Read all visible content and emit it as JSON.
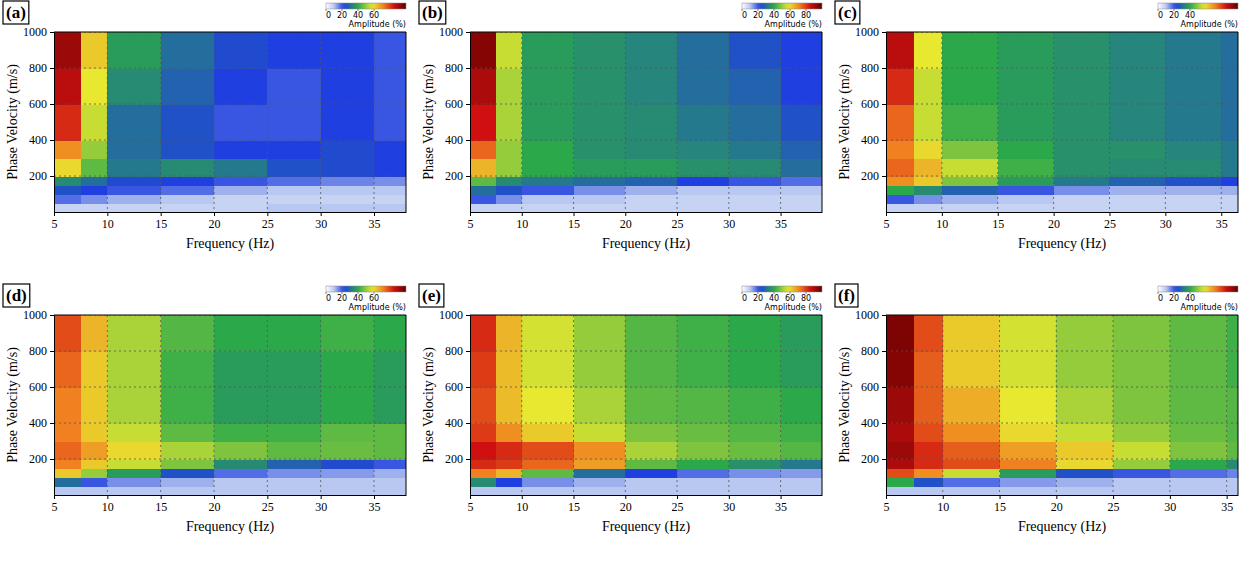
{
  "chart_data": [
    {
      "type": "heatmap",
      "panel_label": "(a)",
      "x_label": "Frequency (Hz)",
      "y_label": "Phase Velocity (m/s)",
      "xlim": [
        5,
        38
      ],
      "ylim": [
        0,
        1000
      ],
      "xticks": [
        5,
        10,
        15,
        20,
        25,
        30,
        35
      ],
      "yticks": [
        200,
        400,
        600,
        800,
        1000
      ],
      "grid": true,
      "x_edges": [
        5,
        7.5,
        10,
        15,
        20,
        25,
        30,
        35,
        40
      ],
      "y_edges": [
        0,
        50,
        100,
        150,
        200,
        300,
        400,
        600,
        800,
        1000
      ],
      "cells": [
        [
          8,
          8,
          8,
          8,
          8,
          10,
          10,
          10
        ],
        [
          18,
          15,
          12,
          10,
          8,
          8,
          8,
          8
        ],
        [
          25,
          22,
          20,
          18,
          12,
          10,
          10,
          10
        ],
        [
          35,
          30,
          24,
          22,
          20,
          18,
          16,
          15
        ],
        [
          60,
          45,
          32,
          35,
          32,
          25,
          24,
          22
        ],
        [
          70,
          50,
          30,
          25,
          22,
          22,
          24,
          22
        ],
        [
          82,
          55,
          30,
          25,
          20,
          20,
          22,
          20
        ],
        [
          88,
          58,
          35,
          28,
          22,
          20,
          22,
          20
        ],
        [
          92,
          62,
          38,
          30,
          24,
          22,
          22,
          20
        ]
      ],
      "colorbar": {
        "label": "Amplitude (%)",
        "range": [
          0,
          100
        ],
        "ticks": [
          0,
          20,
          40,
          60
        ]
      }
    },
    {
      "type": "heatmap",
      "panel_label": "(b)",
      "x_label": "Frequency (Hz)",
      "y_label": "Phase Velocity (m/s)",
      "xlim": [
        5,
        39
      ],
      "ylim": [
        0,
        1000
      ],
      "xticks": [
        5,
        10,
        15,
        20,
        25,
        30,
        35
      ],
      "yticks": [
        200,
        400,
        600,
        800,
        1000
      ],
      "grid": true,
      "x_edges": [
        5,
        7.5,
        10,
        15,
        20,
        25,
        30,
        35,
        40
      ],
      "y_edges": [
        0,
        50,
        100,
        150,
        200,
        300,
        400,
        600,
        800,
        1000
      ],
      "cells": [
        [
          8,
          8,
          8,
          8,
          8,
          8,
          8,
          8
        ],
        [
          20,
          15,
          10,
          10,
          8,
          8,
          8,
          8
        ],
        [
          30,
          25,
          20,
          15,
          12,
          10,
          10,
          10
        ],
        [
          45,
          35,
          32,
          30,
          28,
          22,
          20,
          18
        ],
        [
          65,
          50,
          40,
          38,
          38,
          36,
          35,
          30
        ],
        [
          75,
          50,
          40,
          36,
          35,
          34,
          32,
          28
        ],
        [
          85,
          52,
          38,
          36,
          35,
          32,
          30,
          25
        ],
        [
          90,
          52,
          38,
          36,
          34,
          30,
          28,
          22
        ],
        [
          95,
          55,
          38,
          36,
          34,
          30,
          25,
          22
        ]
      ],
      "colorbar": {
        "label": "Amplitude (%)",
        "range": [
          0,
          100
        ],
        "ticks": [
          0,
          20,
          40,
          60,
          80
        ]
      }
    },
    {
      "type": "heatmap",
      "panel_label": "(c)",
      "x_label": "Frequency (Hz)",
      "y_label": "Phase Velocity (m/s)",
      "xlim": [
        5,
        36.5
      ],
      "ylim": [
        0,
        1000
      ],
      "xticks": [
        5,
        10,
        15,
        20,
        25,
        30,
        35
      ],
      "yticks": [
        200,
        400,
        600,
        800,
        1000
      ],
      "grid": true,
      "x_edges": [
        5,
        7.5,
        10,
        15,
        20,
        25,
        30,
        35,
        40
      ],
      "y_edges": [
        0,
        50,
        100,
        150,
        200,
        300,
        400,
        600,
        800,
        1000
      ],
      "cells": [
        [
          8,
          8,
          8,
          8,
          8,
          8,
          8,
          8
        ],
        [
          20,
          15,
          12,
          10,
          8,
          8,
          8,
          8
        ],
        [
          40,
          35,
          28,
          20,
          15,
          12,
          12,
          12
        ],
        [
          70,
          62,
          48,
          38,
          32,
          28,
          25,
          22
        ],
        [
          75,
          65,
          55,
          42,
          36,
          35,
          35,
          32
        ],
        [
          72,
          60,
          48,
          40,
          36,
          36,
          34,
          32
        ],
        [
          75,
          55,
          42,
          38,
          36,
          34,
          32,
          30
        ],
        [
          82,
          55,
          40,
          38,
          36,
          34,
          32,
          30
        ],
        [
          88,
          58,
          40,
          38,
          36,
          34,
          32,
          30
        ]
      ],
      "colorbar": {
        "label": "Amplitude (%)",
        "range": [
          0,
          100
        ],
        "ticks": [
          0,
          20,
          40
        ]
      }
    },
    {
      "type": "heatmap",
      "panel_label": "(d)",
      "x_label": "Frequency (Hz)",
      "y_label": "Phase Velocity (m/s)",
      "xlim": [
        5,
        38
      ],
      "ylim": [
        0,
        1000
      ],
      "xticks": [
        5,
        10,
        15,
        20,
        25,
        30,
        35
      ],
      "yticks": [
        200,
        400,
        600,
        800,
        1000
      ],
      "grid": true,
      "x_edges": [
        5,
        7.5,
        10,
        15,
        20,
        25,
        30,
        35,
        40
      ],
      "y_edges": [
        0,
        50,
        100,
        150,
        200,
        300,
        400,
        600,
        800,
        1000
      ],
      "cells": [
        [
          10,
          10,
          10,
          10,
          10,
          10,
          10,
          10
        ],
        [
          30,
          20,
          15,
          12,
          10,
          10,
          10,
          10
        ],
        [
          62,
          50,
          38,
          25,
          18,
          15,
          14,
          12
        ],
        [
          72,
          62,
          55,
          48,
          35,
          28,
          24,
          20
        ],
        [
          75,
          68,
          60,
          52,
          48,
          45,
          46,
          45
        ],
        [
          72,
          62,
          55,
          45,
          42,
          42,
          45,
          45
        ],
        [
          72,
          62,
          52,
          42,
          38,
          38,
          40,
          38
        ],
        [
          75,
          62,
          52,
          42,
          38,
          38,
          40,
          38
        ],
        [
          78,
          65,
          52,
          44,
          40,
          40,
          42,
          40
        ]
      ],
      "colorbar": {
        "label": "Amplitude (%)",
        "range": [
          0,
          100
        ],
        "ticks": [
          0,
          20,
          40,
          60
        ]
      }
    },
    {
      "type": "heatmap",
      "panel_label": "(e)",
      "x_label": "Frequency (Hz)",
      "y_label": "Phase Velocity (m/s)",
      "xlim": [
        5,
        39
      ],
      "ylim": [
        0,
        1000
      ],
      "xticks": [
        5,
        10,
        15,
        20,
        25,
        30,
        35
      ],
      "yticks": [
        200,
        400,
        600,
        800,
        1000
      ],
      "grid": true,
      "x_edges": [
        5,
        7.5,
        10,
        15,
        20,
        25,
        30,
        35,
        40
      ],
      "y_edges": [
        0,
        50,
        100,
        150,
        200,
        300,
        400,
        600,
        800,
        1000
      ],
      "cells": [
        [
          10,
          10,
          10,
          10,
          10,
          10,
          10,
          10
        ],
        [
          35,
          22,
          15,
          12,
          10,
          10,
          10,
          10
        ],
        [
          72,
          65,
          45,
          30,
          22,
          18,
          15,
          14
        ],
        [
          82,
          80,
          75,
          68,
          45,
          40,
          36,
          32
        ],
        [
          85,
          82,
          78,
          70,
          52,
          48,
          46,
          44
        ],
        [
          80,
          70,
          62,
          55,
          48,
          46,
          44,
          42
        ],
        [
          78,
          64,
          58,
          52,
          45,
          44,
          42,
          40
        ],
        [
          80,
          64,
          56,
          50,
          44,
          42,
          40,
          38
        ],
        [
          82,
          65,
          56,
          50,
          44,
          42,
          40,
          38
        ]
      ],
      "colorbar": {
        "label": "Amplitude (%)",
        "range": [
          0,
          100
        ],
        "ticks": [
          0,
          20,
          40,
          60,
          80
        ]
      }
    },
    {
      "type": "heatmap",
      "panel_label": "(f)",
      "x_label": "Frequency (Hz)",
      "y_label": "Phase Velocity (m/s)",
      "xlim": [
        5,
        36
      ],
      "ylim": [
        0,
        1000
      ],
      "xticks": [
        5,
        10,
        15,
        20,
        25,
        30,
        35
      ],
      "yticks": [
        200,
        400,
        600,
        800,
        1000
      ],
      "grid": true,
      "x_edges": [
        5,
        7.5,
        10,
        15,
        20,
        25,
        30,
        35,
        40
      ],
      "y_edges": [
        0,
        50,
        100,
        150,
        200,
        300,
        400,
        600,
        800,
        1000
      ],
      "cells": [
        [
          10,
          10,
          10,
          10,
          10,
          10,
          10,
          10
        ],
        [
          40,
          25,
          18,
          14,
          12,
          10,
          10,
          10
        ],
        [
          78,
          70,
          55,
          38,
          25,
          20,
          18,
          16
        ],
        [
          90,
          82,
          78,
          72,
          60,
          50,
          40,
          35
        ],
        [
          92,
          82,
          76,
          68,
          62,
          55,
          48,
          45
        ],
        [
          90,
          78,
          70,
          60,
          55,
          50,
          46,
          44
        ],
        [
          92,
          76,
          66,
          58,
          52,
          48,
          45,
          44
        ],
        [
          95,
          76,
          62,
          56,
          50,
          48,
          45,
          42
        ],
        [
          96,
          78,
          62,
          56,
          50,
          48,
          45,
          42
        ]
      ],
      "colorbar": {
        "label": "Amplitude (%)",
        "range": [
          0,
          100
        ],
        "ticks": [
          0,
          20,
          40
        ]
      }
    }
  ]
}
